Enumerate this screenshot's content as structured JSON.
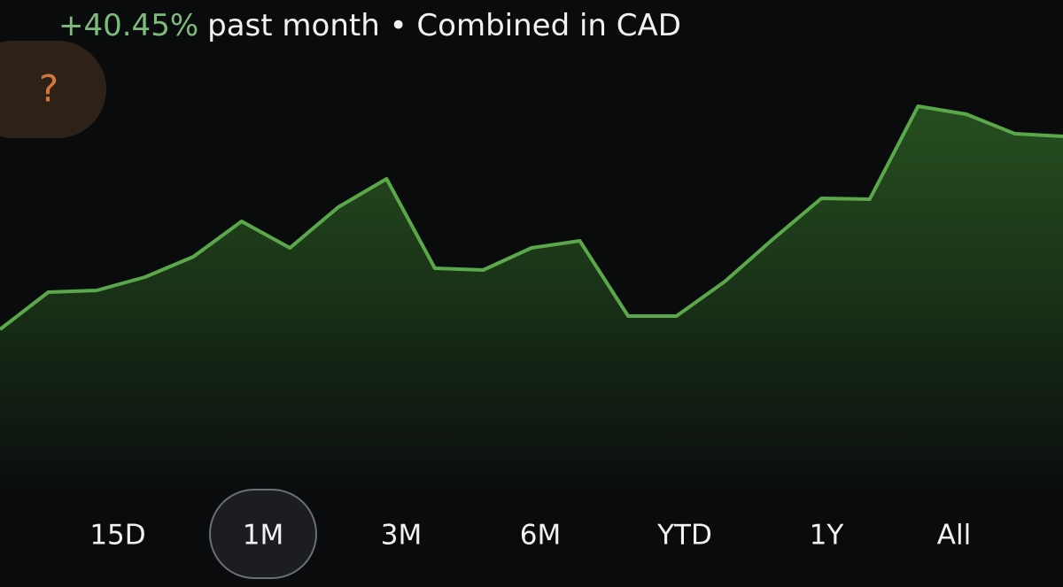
{
  "header": {
    "change": "+40.45%",
    "subtitle": "past month • Combined in CAD"
  },
  "help_button": "?",
  "chart_data": {
    "type": "area",
    "values": [
      28,
      70,
      72,
      87,
      110,
      150,
      120,
      166,
      198,
      97,
      95,
      120,
      128,
      43,
      43,
      82,
      130,
      176,
      175,
      280,
      271,
      249,
      246
    ],
    "color": "#5aa84a"
  },
  "range_buttons": {
    "options": [
      "15D",
      "1M",
      "3M",
      "6M",
      "YTD",
      "1Y",
      "All"
    ],
    "selected": 1
  }
}
